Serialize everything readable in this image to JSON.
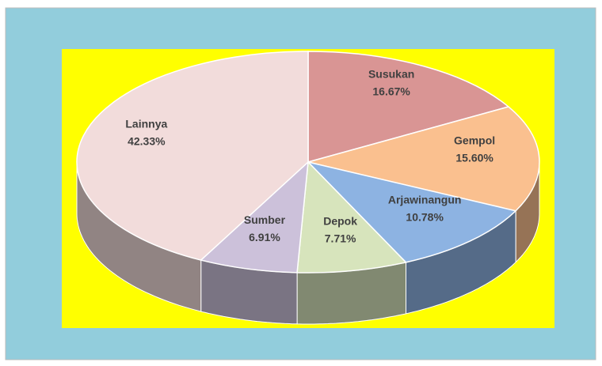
{
  "chart_data": {
    "type": "pie3d",
    "categories": [
      "Susukan",
      "Gempol",
      "Arjawinangun",
      "Depok",
      "Sumber",
      "Lainnya"
    ],
    "values": [
      16.67,
      15.6,
      10.78,
      7.71,
      6.91,
      42.33
    ],
    "value_labels": [
      "16.67%",
      "15.60%",
      "10.78%",
      "7.71%",
      "6.91%",
      "42.33%"
    ],
    "colors": [
      "#d99594",
      "#fac08f",
      "#8db3e2",
      "#d7e4bc",
      "#ccc1da",
      "#f2dcdb"
    ]
  }
}
